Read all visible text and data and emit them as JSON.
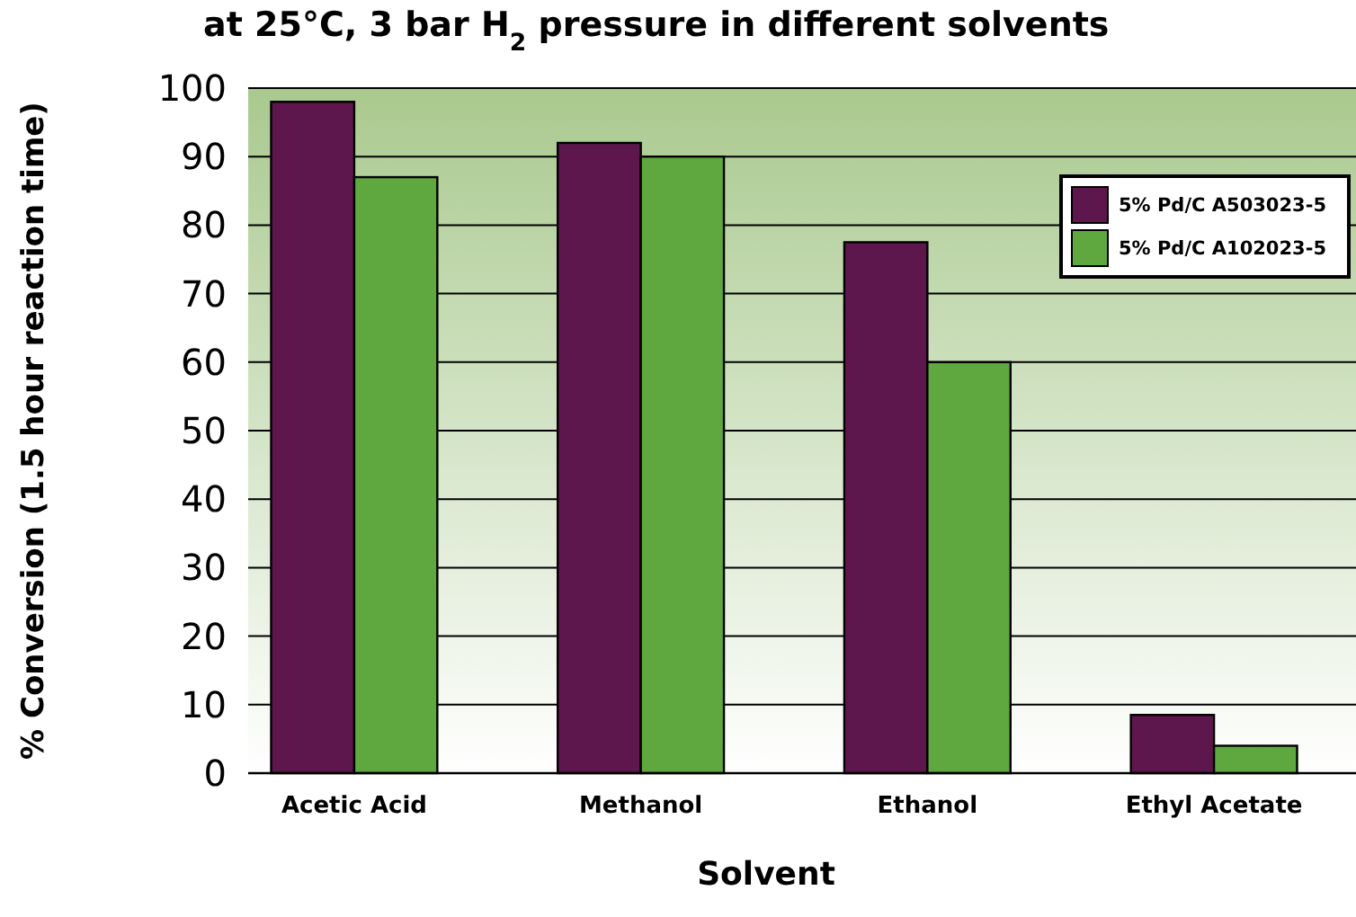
{
  "chart_data": {
    "type": "bar",
    "title": "at 25°C, 3 bar H$_{2}$ pressure in different solvents",
    "xlabel": "Solvent",
    "ylabel": "% Conversion (1.5 hour reaction time)",
    "categories": [
      "Acetic Acid",
      "Methanol",
      "Ethanol",
      "Ethyl Acetate"
    ],
    "series": [
      {
        "name": "5% Pd/C A503023-5",
        "color": "#5e174d",
        "values": [
          98,
          92,
          77.5,
          8.5
        ]
      },
      {
        "name": "5% Pd/C A102023-5",
        "color": "#5fa83f",
        "values": [
          87,
          90,
          60,
          4
        ]
      }
    ],
    "ylim": [
      0,
      100
    ],
    "yticks": [
      0,
      10,
      20,
      30,
      40,
      50,
      60,
      70,
      80,
      90,
      100
    ],
    "grid": "y",
    "legend": "top right"
  }
}
